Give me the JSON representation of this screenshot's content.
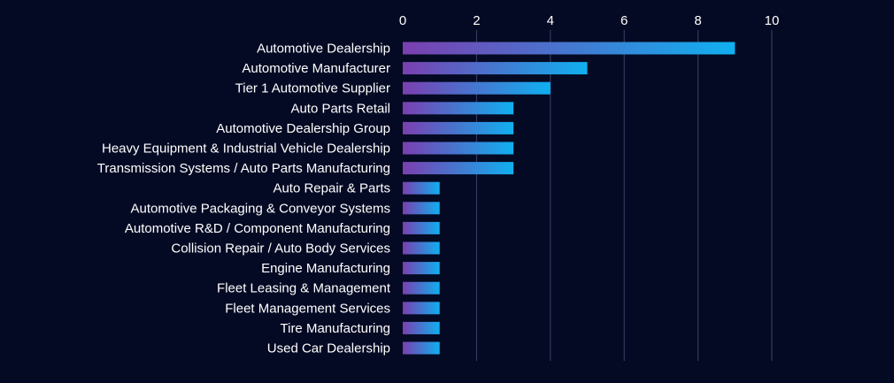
{
  "chart_data": {
    "type": "bar",
    "orientation": "horizontal",
    "title": "",
    "xlabel": "",
    "ylabel": "",
    "xlim": [
      0,
      10
    ],
    "x_ticks": [
      "0",
      "2",
      "4",
      "6",
      "8",
      "10"
    ],
    "x_axis_position": "top",
    "grid": true,
    "legend": "none",
    "categories": [
      "Automotive Dealership",
      "Automotive Manufacturer",
      "Tier 1 Automotive Supplier",
      "Auto Parts Retail",
      "Automotive Dealership Group",
      "Heavy Equipment & Industrial Vehicle Dealership",
      "Transmission Systems / Auto Parts Manufacturing",
      "Auto Repair & Parts",
      "Automotive Packaging & Conveyor Systems",
      "Automotive R&D / Component Manufacturing",
      "Collision Repair / Auto Body Services",
      "Engine Manufacturing",
      "Fleet Leasing & Management",
      "Fleet Management Services",
      "Tire Manufacturing",
      "Used Car Dealership"
    ],
    "values": [
      9,
      5,
      4,
      3,
      3,
      3,
      3,
      1,
      1,
      1,
      1,
      1,
      1,
      1,
      1,
      1
    ],
    "colors": {
      "background": "#050a24",
      "bar_gradient_start": "#7b3fb0",
      "bar_gradient_end": "#0fb0f0",
      "grid": "#3a4168",
      "text": "#ffffff"
    }
  }
}
